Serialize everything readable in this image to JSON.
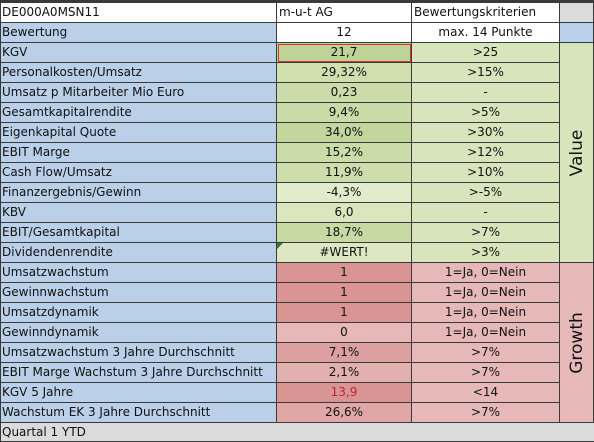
{
  "header": {
    "isin": "DE000A0MSN11",
    "company": "m-u-t AG",
    "criteria": "Bewertungskriterien"
  },
  "bewertung": {
    "label": "Bewertung",
    "value": "12",
    "criteria": "max. 14 Punkte"
  },
  "value_group": {
    "label": "Value",
    "rows": [
      {
        "label": "KGV",
        "value": "21,7",
        "criteria": ">25"
      },
      {
        "label": "Personalkosten/Umsatz",
        "value": "29,32%",
        "criteria": ">15%"
      },
      {
        "label": "Umsatz p Mitarbeiter Mio Euro",
        "value": "0,23",
        "criteria": "-"
      },
      {
        "label": "Gesamtkapitalrendite",
        "value": "9,4%",
        "criteria": ">5%"
      },
      {
        "label": "Eigenkapital Quote",
        "value": "34,0%",
        "criteria": ">30%"
      },
      {
        "label": "EBIT Marge",
        "value": "15,2%",
        "criteria": ">12%"
      },
      {
        "label": "Cash Flow/Umsatz",
        "value": "11,9%",
        "criteria": ">10%"
      },
      {
        "label": "Finanzergebnis/Gewinn",
        "value": "-4,3%",
        "criteria": ">-5%"
      },
      {
        "label": "KBV",
        "value": "6,0",
        "criteria": "-"
      },
      {
        "label": "EBIT/Gesamtkapital",
        "value": "18,7%",
        "criteria": ">7%"
      },
      {
        "label": "Dividendenrendite",
        "value": "#WERT!",
        "criteria": ">3%"
      }
    ]
  },
  "growth_group": {
    "label": "Growth",
    "rows": [
      {
        "label": "Umsatzwachstum",
        "value": "1",
        "criteria": "1=Ja, 0=Nein"
      },
      {
        "label": "Gewinnwachstum",
        "value": "1",
        "criteria": "1=Ja, 0=Nein"
      },
      {
        "label": "Umsatzdynamik",
        "value": "1",
        "criteria": "1=Ja, 0=Nein"
      },
      {
        "label": "Gewinndynamik",
        "value": "0",
        "criteria": "1=Ja, 0=Nein"
      },
      {
        "label": "Umsatzwachstum 3 Jahre Durchschnitt",
        "value": "7,1%",
        "criteria": ">7%"
      },
      {
        "label": "EBIT Marge Wachstum 3 Jahre Durchschnitt",
        "value": "2,1%",
        "criteria": ">7%"
      },
      {
        "label": "KGV 5 Jahre",
        "value": "13,9",
        "criteria": "<14"
      },
      {
        "label": "Wachstum EK 3 Jahre Durchschnitt",
        "value": "26,6%",
        "criteria": ">7%"
      }
    ]
  },
  "footer": {
    "label": "Quartal 1 YTD"
  },
  "colors": {
    "label_blue": "#bad0e8",
    "value_green_shades": [
      "#b4cf8e",
      "#c9dca5",
      "#d6e4b6",
      "#dfe9c6"
    ],
    "criteria_green": "#d8e4bc",
    "growth_red_shades": [
      "#d99594",
      "#e0a9a8",
      "#e6b9b8"
    ],
    "selection_border": "#d9362b",
    "error_triangle": "#2e7d32",
    "red_text": "#c0272d"
  }
}
